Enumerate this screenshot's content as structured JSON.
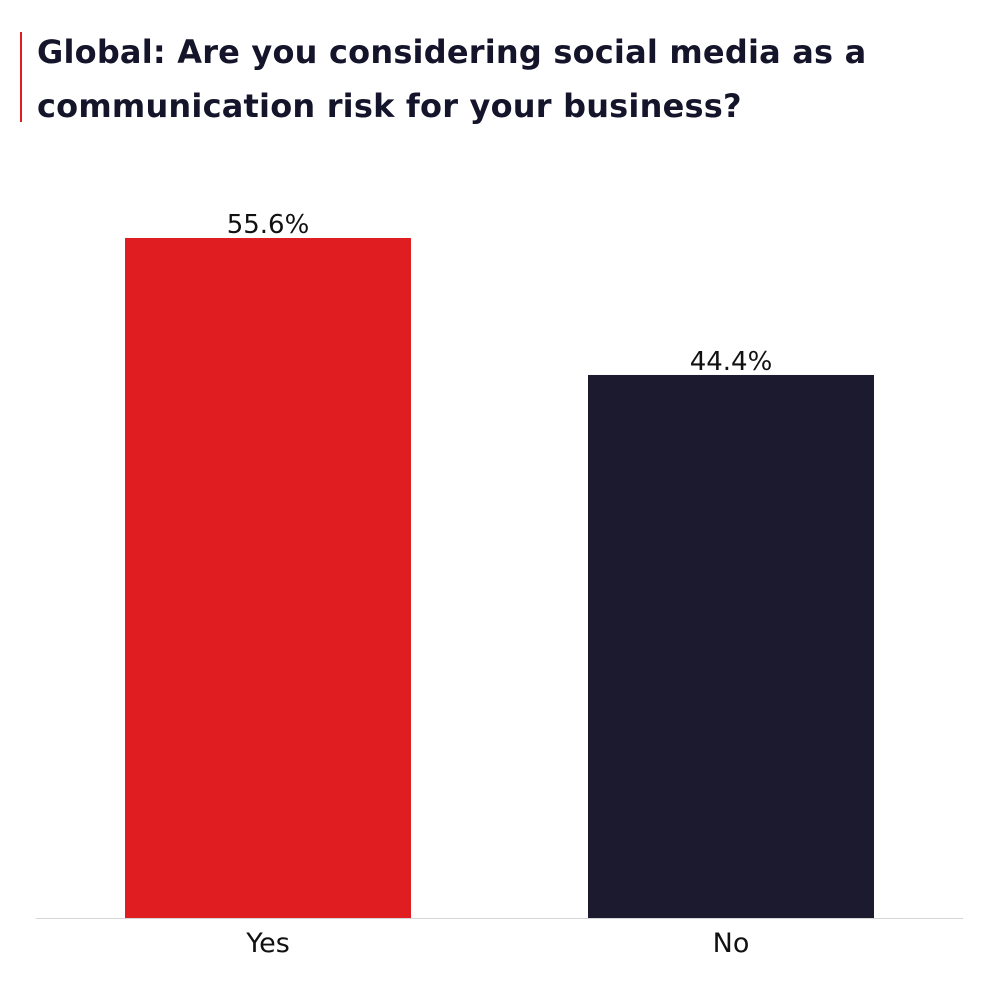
{
  "chart_data": {
    "type": "bar",
    "title": "Global: Are you considering social media as a communication risk for your business?",
    "categories": [
      "Yes",
      "No"
    ],
    "values": [
      55.6,
      44.4
    ],
    "value_labels": [
      "55.6%",
      "44.4%"
    ],
    "colors": [
      "#e01e22",
      "#1b1a2f"
    ],
    "xlabel": "",
    "ylabel": "",
    "ylim": [
      0,
      55.6
    ],
    "grid": false,
    "legend": "none"
  }
}
